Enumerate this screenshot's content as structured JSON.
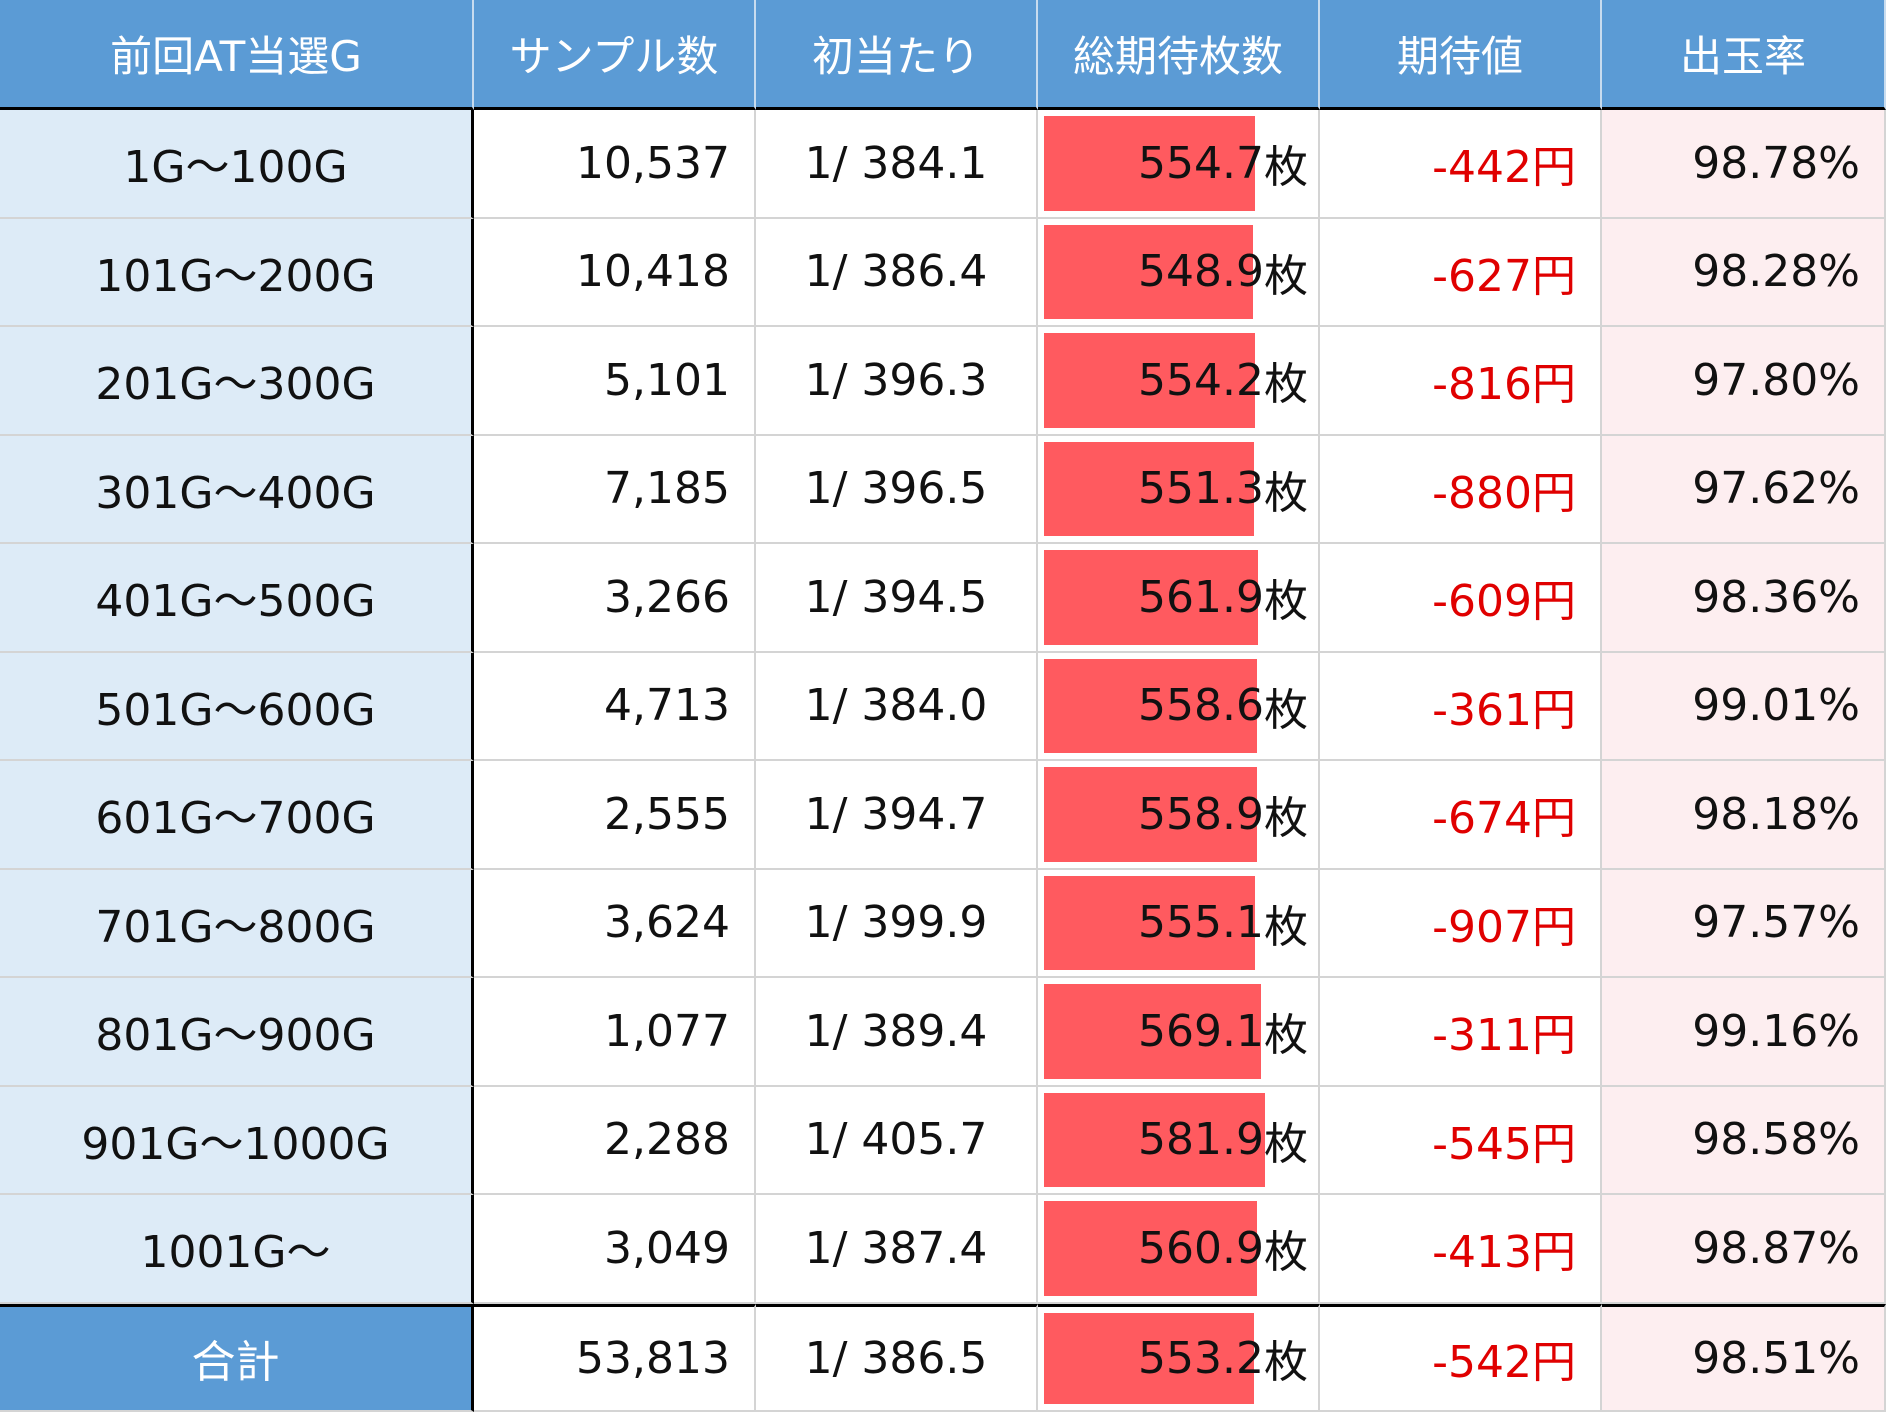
{
  "table": {
    "header": [
      "前回AT当選G",
      "サンプル数",
      "初当たり",
      "総期待枚数",
      "期待値",
      "出玉率"
    ],
    "medal_unit": "枚",
    "rows": [
      {
        "range": "1G～100G",
        "samples": "10,537",
        "first_hit": "1/ 384.1",
        "medals": 554.7,
        "expected": "-442円",
        "payout": "98.78%"
      },
      {
        "range": "101G～200G",
        "samples": "10,418",
        "first_hit": "1/ 386.4",
        "medals": 548.9,
        "expected": "-627円",
        "payout": "98.28%"
      },
      {
        "range": "201G～300G",
        "samples": "5,101",
        "first_hit": "1/ 396.3",
        "medals": 554.2,
        "expected": "-816円",
        "payout": "97.80%"
      },
      {
        "range": "301G～400G",
        "samples": "7,185",
        "first_hit": "1/ 396.5",
        "medals": 551.3,
        "expected": "-880円",
        "payout": "97.62%"
      },
      {
        "range": "401G～500G",
        "samples": "3,266",
        "first_hit": "1/ 394.5",
        "medals": 561.9,
        "expected": "-609円",
        "payout": "98.36%"
      },
      {
        "range": "501G～600G",
        "samples": "4,713",
        "first_hit": "1/ 384.0",
        "medals": 558.6,
        "expected": "-361円",
        "payout": "99.01%"
      },
      {
        "range": "601G～700G",
        "samples": "2,555",
        "first_hit": "1/ 394.7",
        "medals": 558.9,
        "expected": "-674円",
        "payout": "98.18%"
      },
      {
        "range": "701G～800G",
        "samples": "3,624",
        "first_hit": "1/ 399.9",
        "medals": 555.1,
        "expected": "-907円",
        "payout": "97.57%"
      },
      {
        "range": "801G～900G",
        "samples": "1,077",
        "first_hit": "1/ 389.4",
        "medals": 569.1,
        "expected": "-311円",
        "payout": "99.16%"
      },
      {
        "range": "901G～1000G",
        "samples": "2,288",
        "first_hit": "1/ 405.7",
        "medals": 581.9,
        "expected": "-545円",
        "payout": "98.58%"
      },
      {
        "range": "1001G～",
        "samples": "3,049",
        "first_hit": "1/ 387.4",
        "medals": 560.9,
        "expected": "-413円",
        "payout": "98.87%"
      }
    ],
    "total": {
      "range": "合計",
      "samples": "53,813",
      "first_hit": "1/ 386.5",
      "medals": 553.2,
      "expected": "-542円",
      "payout": "98.51%"
    }
  }
}
